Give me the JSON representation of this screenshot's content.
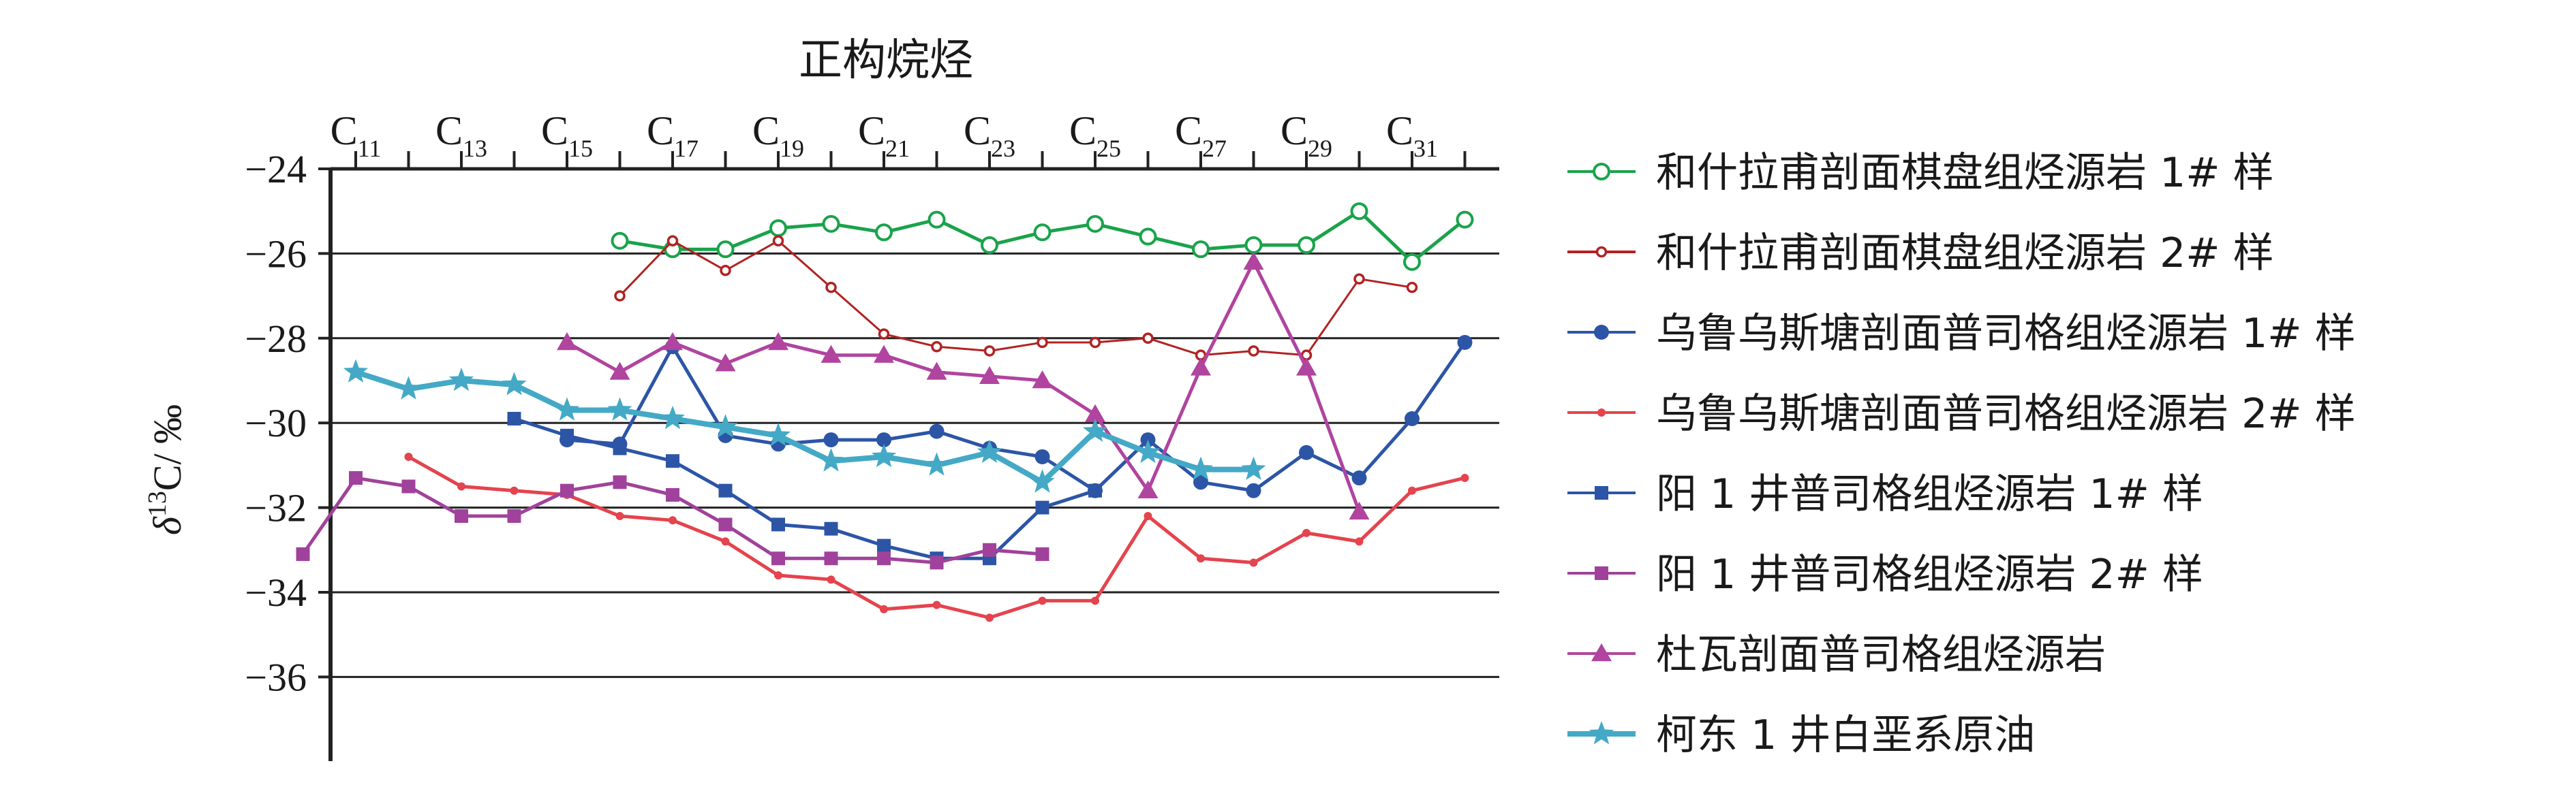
{
  "chart_data": {
    "type": "line",
    "title": "正构烷烃",
    "ylabel_html": {
      "delta": "δ",
      "sup": "13",
      "rest": "C/ ‰"
    },
    "ylim": [
      -38,
      -24
    ],
    "yticks": [
      -24,
      -26,
      -28,
      -30,
      -32,
      -34,
      -36
    ],
    "ytick_labels": [
      "−24",
      "−26",
      "−28",
      "−30",
      "−32",
      "−34",
      "−36"
    ],
    "x_positions": [
      11,
      12,
      13,
      14,
      15,
      16,
      17,
      18,
      19,
      20,
      21,
      22,
      23,
      24,
      25,
      26,
      27,
      28,
      29,
      30,
      31,
      32
    ],
    "xtick_labels": [
      {
        "x": 11,
        "main": "C",
        "sub": "11"
      },
      {
        "x": 13,
        "main": "C",
        "sub": "13"
      },
      {
        "x": 15,
        "main": "C",
        "sub": "15"
      },
      {
        "x": 17,
        "main": "C",
        "sub": "17"
      },
      {
        "x": 19,
        "main": "C",
        "sub": "19"
      },
      {
        "x": 21,
        "main": "C",
        "sub": "21"
      },
      {
        "x": 23,
        "main": "C",
        "sub": "23"
      },
      {
        "x": 25,
        "main": "C",
        "sub": "25"
      },
      {
        "x": 27,
        "main": "C",
        "sub": "27"
      },
      {
        "x": 29,
        "main": "C",
        "sub": "29"
      },
      {
        "x": 31,
        "main": "C",
        "sub": "31"
      }
    ],
    "grid": true,
    "legend_position": "right",
    "series": [
      {
        "name": "和什拉甫剖面棋盘组烃源岩 1# 样",
        "color": "#1aa34a",
        "marker": "open-circle",
        "points": [
          [
            16,
            -25.7
          ],
          [
            17,
            -25.9
          ],
          [
            18,
            -25.9
          ],
          [
            19,
            -25.4
          ],
          [
            20,
            -25.3
          ],
          [
            21,
            -25.5
          ],
          [
            22,
            -25.2
          ],
          [
            23,
            -25.8
          ],
          [
            24,
            -25.5
          ],
          [
            25,
            -25.3
          ],
          [
            26,
            -25.6
          ],
          [
            27,
            -25.9
          ],
          [
            28,
            -25.8
          ],
          [
            29,
            -25.8
          ],
          [
            30,
            -25.0
          ],
          [
            31,
            -26.2
          ],
          [
            32,
            -25.2
          ]
        ]
      },
      {
        "name": "和什拉甫剖面棋盘组烃源岩 2# 样",
        "color": "#b22222",
        "marker": "small-circle",
        "points": [
          [
            16,
            -27.0
          ],
          [
            17,
            -25.7
          ],
          [
            18,
            -26.4
          ],
          [
            19,
            -25.7
          ],
          [
            20,
            -26.8
          ],
          [
            21,
            -27.9
          ],
          [
            22,
            -28.2
          ],
          [
            23,
            -28.3
          ],
          [
            24,
            -28.1
          ],
          [
            25,
            -28.1
          ],
          [
            26,
            -28.0
          ],
          [
            27,
            -28.4
          ],
          [
            28,
            -28.3
          ],
          [
            29,
            -28.4
          ],
          [
            30,
            -26.6
          ],
          [
            31,
            -26.8
          ]
        ]
      },
      {
        "name": "乌鲁乌斯塘剖面普司格组烃源岩 1# 样",
        "color": "#2c55a6",
        "marker": "filled-circle",
        "points": [
          [
            15,
            -30.4
          ],
          [
            16,
            -30.5
          ],
          [
            17,
            -28.2
          ],
          [
            18,
            -30.3
          ],
          [
            19,
            -30.5
          ],
          [
            20,
            -30.4
          ],
          [
            21,
            -30.4
          ],
          [
            22,
            -30.2
          ],
          [
            23,
            -30.6
          ],
          [
            24,
            -30.8
          ],
          [
            25,
            -31.6
          ],
          [
            26,
            -30.4
          ],
          [
            27,
            -31.4
          ],
          [
            28,
            -31.6
          ],
          [
            29,
            -30.7
          ],
          [
            30,
            -31.3
          ],
          [
            31,
            -29.9
          ],
          [
            32,
            -28.1
          ]
        ]
      },
      {
        "name": "乌鲁乌斯塘剖面普司格组烃源岩 2# 样",
        "color": "#e5434d",
        "marker": "small-dot",
        "points": [
          [
            12,
            -30.8
          ],
          [
            13,
            -31.5
          ],
          [
            14,
            -31.6
          ],
          [
            15,
            -31.7
          ],
          [
            16,
            -32.2
          ],
          [
            17,
            -32.3
          ],
          [
            18,
            -32.8
          ],
          [
            19,
            -33.6
          ],
          [
            20,
            -33.7
          ],
          [
            21,
            -34.4
          ],
          [
            22,
            -34.3
          ],
          [
            23,
            -34.6
          ],
          [
            24,
            -34.2
          ],
          [
            25,
            -34.2
          ],
          [
            26,
            -32.2
          ],
          [
            27,
            -33.2
          ],
          [
            28,
            -33.3
          ],
          [
            29,
            -32.6
          ],
          [
            30,
            -32.8
          ],
          [
            31,
            -31.6
          ],
          [
            32,
            -31.3
          ]
        ]
      },
      {
        "name": "阳 1 井普司格组烃源岩 1# 样",
        "color": "#2c55a6",
        "marker": "filled-square",
        "points": [
          [
            14,
            -29.9
          ],
          [
            15,
            -30.3
          ],
          [
            16,
            -30.6
          ],
          [
            17,
            -30.9
          ],
          [
            18,
            -31.6
          ],
          [
            19,
            -32.4
          ],
          [
            20,
            -32.5
          ],
          [
            21,
            -32.9
          ],
          [
            22,
            -33.2
          ],
          [
            23,
            -33.2
          ],
          [
            24,
            -32.0
          ],
          [
            25,
            -31.6
          ]
        ]
      },
      {
        "name": "阳 1 井普司格组烃源岩 2# 样",
        "color": "#a0429b",
        "marker": "filled-square",
        "points": [
          [
            10,
            -33.1
          ],
          [
            11,
            -31.3
          ],
          [
            12,
            -31.5
          ],
          [
            13,
            -32.2
          ],
          [
            14,
            -32.2
          ],
          [
            15,
            -31.6
          ],
          [
            16,
            -31.4
          ],
          [
            17,
            -31.7
          ],
          [
            18,
            -32.4
          ],
          [
            19,
            -33.2
          ],
          [
            20,
            -33.2
          ],
          [
            21,
            -33.2
          ],
          [
            22,
            -33.3
          ],
          [
            23,
            -33.0
          ],
          [
            24,
            -33.1
          ]
        ]
      },
      {
        "name": "杜瓦剖面普司格组烃源岩",
        "color": "#b0449f",
        "marker": "filled-triangle",
        "points": [
          [
            15,
            -28.1
          ],
          [
            16,
            -28.8
          ],
          [
            17,
            -28.1
          ],
          [
            18,
            -28.6
          ],
          [
            19,
            -28.1
          ],
          [
            20,
            -28.4
          ],
          [
            21,
            -28.4
          ],
          [
            22,
            -28.8
          ],
          [
            23,
            -28.9
          ],
          [
            24,
            -29.0
          ],
          [
            25,
            -29.8
          ],
          [
            26,
            -31.6
          ],
          [
            27,
            -28.7
          ],
          [
            28,
            -26.2
          ],
          [
            29,
            -28.7
          ],
          [
            30,
            -32.1
          ]
        ]
      },
      {
        "name": "柯东 1 井白垩系原油",
        "color": "#44a9c6",
        "marker": "filled-star",
        "points": [
          [
            11,
            -28.8
          ],
          [
            12,
            -29.2
          ],
          [
            13,
            -29.0
          ],
          [
            14,
            -29.1
          ],
          [
            15,
            -29.7
          ],
          [
            16,
            -29.7
          ],
          [
            17,
            -29.9
          ],
          [
            18,
            -30.1
          ],
          [
            19,
            -30.3
          ],
          [
            20,
            -30.9
          ],
          [
            21,
            -30.8
          ],
          [
            22,
            -31.0
          ],
          [
            23,
            -30.7
          ],
          [
            24,
            -31.4
          ],
          [
            25,
            -30.2
          ],
          [
            26,
            -30.7
          ],
          [
            27,
            -31.1
          ],
          [
            28,
            -31.1
          ]
        ]
      }
    ]
  }
}
